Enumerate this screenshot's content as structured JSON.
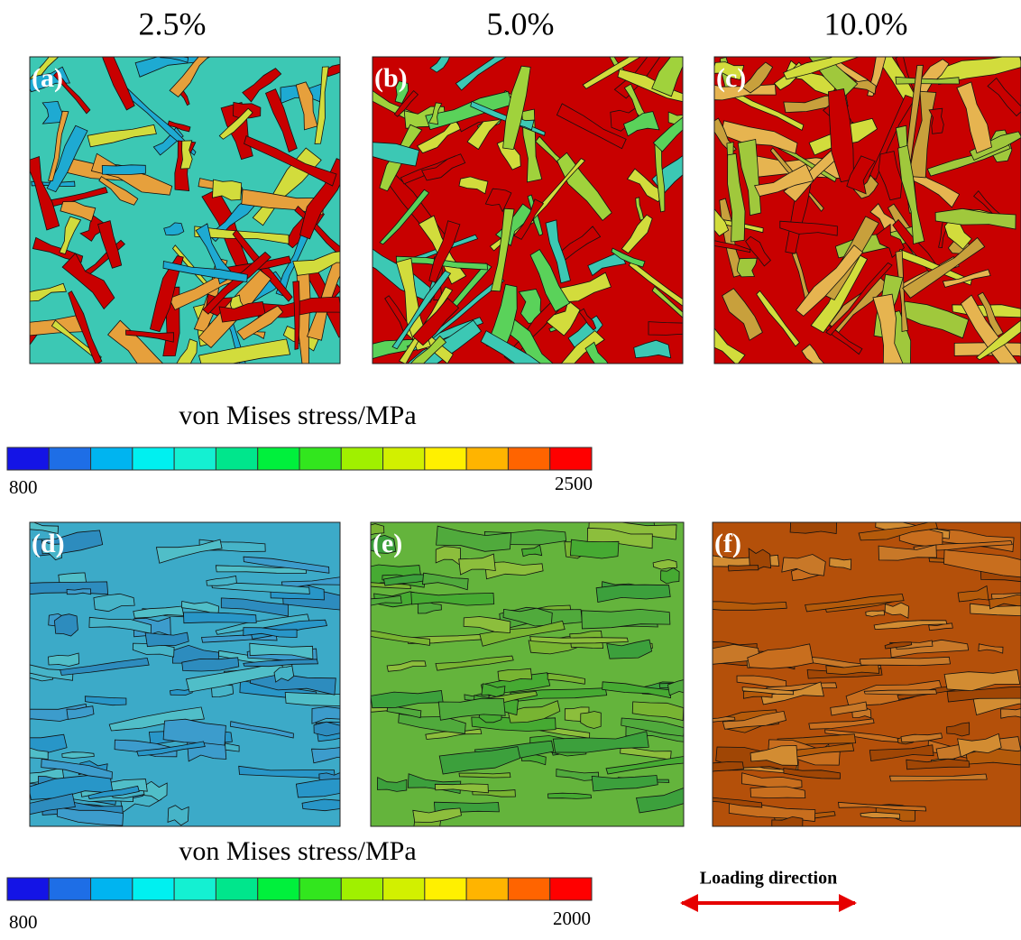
{
  "column_headers": [
    "2.5%",
    "5.0%",
    "10.0%"
  ],
  "panels": [
    {
      "label": "(a)"
    },
    {
      "label": "(b)"
    },
    {
      "label": "(c)"
    },
    {
      "label": "(d)"
    },
    {
      "label": "(e)"
    },
    {
      "label": "(f)"
    }
  ],
  "colorbars": [
    {
      "title": "von Mises stress/MPa",
      "min_label": "800",
      "max_label": "2500"
    },
    {
      "title": "von Mises stress/MPa",
      "min_label": "800",
      "max_label": "2000"
    }
  ],
  "colorbar_colors": [
    "#1414e6",
    "#1e6ee6",
    "#00b4f0",
    "#00f0f0",
    "#14f0d2",
    "#00e68c",
    "#00f03c",
    "#32e61e",
    "#a0f000",
    "#d2f000",
    "#fff000",
    "#ffb400",
    "#ff6400",
    "#ff0000"
  ],
  "loading_direction": "Loading direction"
}
